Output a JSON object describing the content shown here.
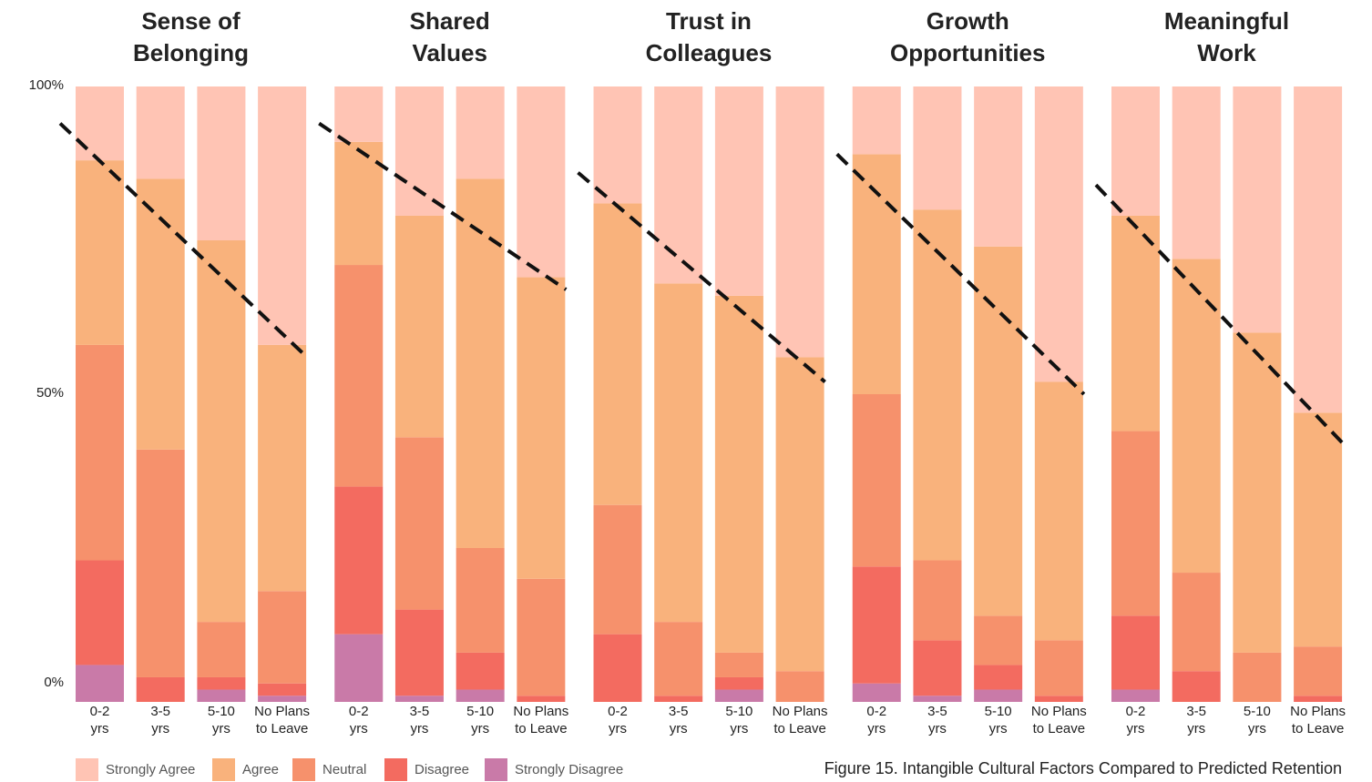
{
  "chart_data": [
    {
      "type": "bar",
      "stacked": true,
      "title": "Sense of\nBelonging",
      "categories": [
        "0-2\nyrs",
        "3-5\nyrs",
        "5-10\nyrs",
        "No Plans\nto Leave"
      ],
      "series": [
        {
          "name": "Strongly Disagree",
          "color": "#c97aa8",
          "values": [
            6,
            0,
            2,
            1
          ]
        },
        {
          "name": "Disagree",
          "color": "#f36b60",
          "values": [
            17,
            4,
            2,
            2
          ]
        },
        {
          "name": "Neutral",
          "color": "#f6916c",
          "values": [
            35,
            37,
            9,
            15
          ]
        },
        {
          "name": "Agree",
          "color": "#f9b27c",
          "values": [
            30,
            44,
            62,
            40
          ]
        },
        {
          "name": "Strongly Agree",
          "color": "#ffc4b4",
          "values": [
            12,
            15,
            25,
            42
          ]
        }
      ],
      "trend": [
        94,
        56
      ],
      "ylim": [
        0,
        100
      ],
      "yticks": [
        {
          "value": 0,
          "label": "0%"
        },
        {
          "value": 50,
          "label": "50%"
        },
        {
          "value": 100,
          "label": "100%"
        }
      ]
    },
    {
      "type": "bar",
      "stacked": true,
      "title": "Shared\nValues",
      "categories": [
        "0-2\nyrs",
        "3-5\nyrs",
        "5-10\nyrs",
        "No Plans\nto Leave"
      ],
      "series": [
        {
          "values": [
            11,
            1,
            2,
            0
          ]
        },
        {
          "values": [
            24,
            14,
            6,
            1
          ]
        },
        {
          "values": [
            36,
            28,
            17,
            19
          ]
        },
        {
          "values": [
            20,
            36,
            60,
            49
          ]
        },
        {
          "values": [
            9,
            21,
            15,
            31
          ]
        }
      ],
      "trend": [
        94,
        67
      ],
      "ylim": [
        0,
        100
      ]
    },
    {
      "type": "bar",
      "stacked": true,
      "title": "Trust in\nColleagues",
      "categories": [
        "0-2\nyrs",
        "3-5\nyrs",
        "5-10\nyrs",
        "No Plans\nto Leave"
      ],
      "series": [
        {
          "values": [
            0,
            0,
            2,
            0
          ]
        },
        {
          "values": [
            11,
            1,
            2,
            0
          ]
        },
        {
          "values": [
            21,
            12,
            4,
            5
          ]
        },
        {
          "values": [
            49,
            55,
            58,
            51
          ]
        },
        {
          "values": [
            19,
            32,
            34,
            44
          ]
        }
      ],
      "trend": [
        86,
        52
      ],
      "ylim": [
        0,
        100
      ]
    },
    {
      "type": "bar",
      "stacked": true,
      "title": "Growth\nOpportunities",
      "categories": [
        "0-2\nyrs",
        "3-5\nyrs",
        "5-10\nyrs",
        "No Plans\nto Leave"
      ],
      "series": [
        {
          "values": [
            3,
            1,
            2,
            0
          ]
        },
        {
          "values": [
            19,
            9,
            4,
            1
          ]
        },
        {
          "values": [
            28,
            13,
            8,
            9
          ]
        },
        {
          "values": [
            39,
            57,
            60,
            42
          ]
        },
        {
          "values": [
            11,
            20,
            26,
            48
          ]
        }
      ],
      "trend": [
        89,
        50
      ],
      "ylim": [
        0,
        100
      ]
    },
    {
      "type": "bar",
      "stacked": true,
      "title": "Meaningful\nWork",
      "categories": [
        "0-2\nyrs",
        "3-5\nyrs",
        "5-10\nyrs",
        "No Plans\nto Leave"
      ],
      "series": [
        {
          "values": [
            2,
            0,
            0,
            0
          ]
        },
        {
          "values": [
            12,
            5,
            0,
            1
          ]
        },
        {
          "values": [
            30,
            16,
            8,
            8
          ]
        },
        {
          "values": [
            35,
            51,
            52,
            38
          ]
        },
        {
          "values": [
            21,
            28,
            40,
            53
          ]
        }
      ],
      "trend": [
        84,
        42
      ],
      "ylim": [
        0,
        100
      ]
    }
  ],
  "caption": "Figure 15. Intangible Cultural Factors Compared to Predicted Retention"
}
